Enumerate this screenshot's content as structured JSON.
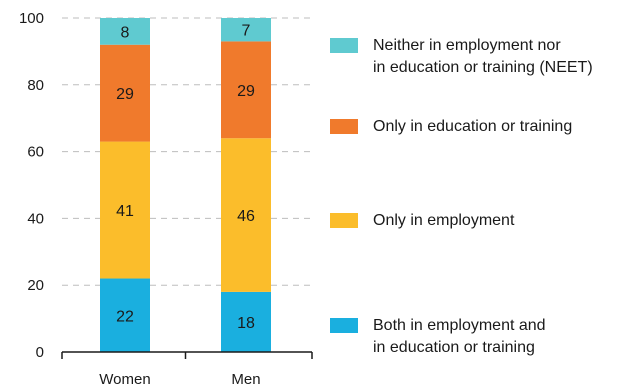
{
  "chart_data": {
    "type": "bar",
    "stacked": true,
    "categories": [
      "Women",
      "Men"
    ],
    "series": [
      {
        "name": "Both in employment and in education or training",
        "legend_lines": [
          "Both in employment and",
          "in education or training"
        ],
        "values": [
          22,
          18
        ],
        "color": "#1aafdf"
      },
      {
        "name": "Only in employment",
        "legend_lines": [
          "Only in employment"
        ],
        "values": [
          41,
          46
        ],
        "color": "#fbbd2b"
      },
      {
        "name": "Only in education or training",
        "legend_lines": [
          "Only in education or training"
        ],
        "values": [
          29,
          29
        ],
        "color": "#f07a2c"
      },
      {
        "name": "Neither in employment nor in education or training (NEET)",
        "legend_lines": [
          "Neither in employment nor",
          "in education or training (NEET)"
        ],
        "values": [
          8,
          7
        ],
        "color": "#5fcad0"
      }
    ],
    "yticks": [
      0,
      20,
      40,
      60,
      80,
      100
    ],
    "ylim": [
      0,
      100
    ],
    "grid": "horizontal dashed",
    "legend_position": "right",
    "xlabel": "",
    "ylabel": "",
    "title": ""
  }
}
